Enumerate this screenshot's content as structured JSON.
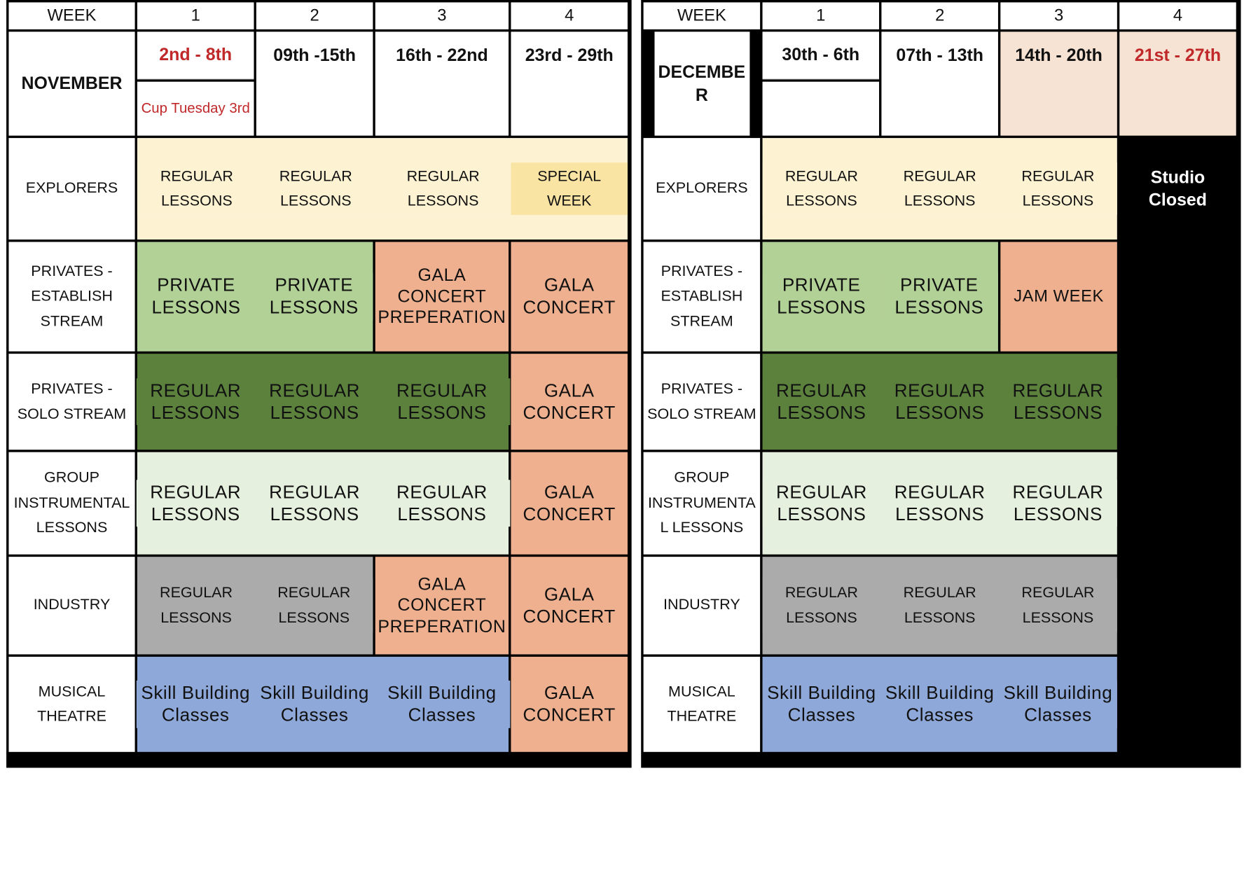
{
  "table_left": {
    "week_label": "WEEK",
    "week_numbers": [
      "1",
      "2",
      "3",
      "4"
    ],
    "month": "NOVEMBER",
    "dates": [
      "2nd - 8th",
      "09th -15th",
      "16th - 22nd",
      "23rd - 29th"
    ],
    "note": "Cup Tuesday 3rd",
    "rows": [
      {
        "label": "EXPLORERS",
        "cells": [
          "REGULAR LESSONS",
          "REGULAR LESSONS",
          "REGULAR LESSONS",
          "SPECIAL WEEK"
        ]
      },
      {
        "label": "PRIVATES - ESTABLISH STREAM",
        "cells": [
          "PRIVATE LESSONS",
          "PRIVATE LESSONS",
          "GALA CONCERT PREPERATION",
          "GALA CONCERT"
        ]
      },
      {
        "label": "PRIVATES - SOLO STREAM",
        "cells": [
          "REGULAR LESSONS",
          "REGULAR LESSONS",
          "REGULAR LESSONS",
          "GALA CONCERT"
        ]
      },
      {
        "label": "GROUP INSTRUMENTAL LESSONS",
        "cells": [
          "REGULAR LESSONS",
          "REGULAR LESSONS",
          "REGULAR LESSONS",
          "GALA CONCERT"
        ]
      },
      {
        "label": "INDUSTRY",
        "cells": [
          "REGULAR LESSONS",
          "REGULAR LESSONS",
          "GALA CONCERT PREPERATION",
          "GALA CONCERT"
        ]
      },
      {
        "label": "MUSICAL THEATRE",
        "cells": [
          "Skill Building Classes",
          "Skill Building Classes",
          "Skill Building Classes",
          "GALA CONCERT"
        ]
      }
    ]
  },
  "table_right": {
    "week_label": "WEEK",
    "week_numbers": [
      "1",
      "2",
      "3",
      "4"
    ],
    "month": "DECEMBE R",
    "dates": [
      "30th - 6th",
      "07th - 13th",
      "14th - 20th",
      "21st - 27th"
    ],
    "closed": "Studio Closed",
    "rows": [
      {
        "label": "EXPLORERS",
        "cells": [
          "REGULAR LESSONS",
          "REGULAR LESSONS",
          "REGULAR LESSONS"
        ]
      },
      {
        "label": "PRIVATES - ESTABLISH STREAM",
        "cells": [
          "PRIVATE LESSONS",
          "PRIVATE LESSONS",
          "JAM WEEK"
        ]
      },
      {
        "label": "PRIVATES - SOLO STREAM",
        "cells": [
          "REGULAR LESSONS",
          "REGULAR LESSONS",
          "REGULAR LESSONS"
        ]
      },
      {
        "label": "GROUP INSTRUMENTA L LESSONS",
        "cells": [
          "REGULAR LESSONS",
          "REGULAR LESSONS",
          "REGULAR LESSONS"
        ]
      },
      {
        "label": "INDUSTRY",
        "cells": [
          "REGULAR LESSONS",
          "REGULAR LESSONS",
          "REGULAR LESSONS"
        ]
      },
      {
        "label": "MUSICAL THEATRE",
        "cells": [
          "Skill Building Classes",
          "Skill Building Classes",
          "Skill Building Classes"
        ]
      }
    ]
  },
  "colors": {
    "date_highlight": "#c0282a",
    "peach": "#f6e3d4",
    "cream": "#fdf3d3",
    "yellow": "#fae4a3",
    "light_green": "#b2d196",
    "orange": "#eeb08e",
    "dark_green": "#5b813d",
    "pale_green": "#e6f0df",
    "grey": "#ababab",
    "blue": "#8ea8d9"
  }
}
